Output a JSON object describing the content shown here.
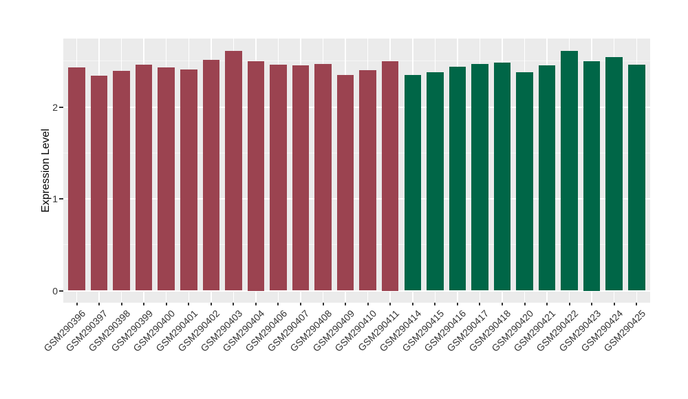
{
  "chart_data": {
    "type": "bar",
    "title": "",
    "xlabel": "",
    "ylabel": "Expression Level",
    "ylim": [
      0,
      2.75
    ],
    "yticks": [
      0,
      1,
      2
    ],
    "grid": "horizontal major+minor, vertical major at each category",
    "legend": "none",
    "categories": [
      "GSM290396",
      "GSM290397",
      "GSM290398",
      "GSM290399",
      "GSM290400",
      "GSM290401",
      "GSM290402",
      "GSM290403",
      "GSM290404",
      "GSM290406",
      "GSM290407",
      "GSM290408",
      "GSM290409",
      "GSM290410",
      "GSM290411",
      "GSM290414",
      "GSM290415",
      "GSM290416",
      "GSM290417",
      "GSM290418",
      "GSM290420",
      "GSM290421",
      "GSM290422",
      "GSM290423",
      "GSM290424",
      "GSM290425"
    ],
    "values": [
      2.43,
      2.34,
      2.39,
      2.46,
      2.43,
      2.41,
      2.51,
      2.61,
      2.5,
      2.46,
      2.45,
      2.47,
      2.35,
      2.4,
      2.5,
      2.35,
      2.38,
      2.44,
      2.47,
      2.48,
      2.38,
      2.45,
      2.61,
      2.5,
      2.54,
      2.46
    ],
    "bar_groups": [
      "group1",
      "group1",
      "group1",
      "group1",
      "group1",
      "group1",
      "group1",
      "group1",
      "group1",
      "group1",
      "group1",
      "group1",
      "group1",
      "group1",
      "group1",
      "group2",
      "group2",
      "group2",
      "group2",
      "group2",
      "group2",
      "group2",
      "group2",
      "group2",
      "group2",
      "group2"
    ],
    "group_colors": {
      "group1": "#9B4350",
      "group2": "#006647"
    },
    "style": {
      "panel_background": "#EBEBEB",
      "grid_major_color": "#FFFFFF",
      "grid_minor_color": "#F6F6F6",
      "axis_text_color": "#333333",
      "axis_title_color": "#000000"
    }
  }
}
